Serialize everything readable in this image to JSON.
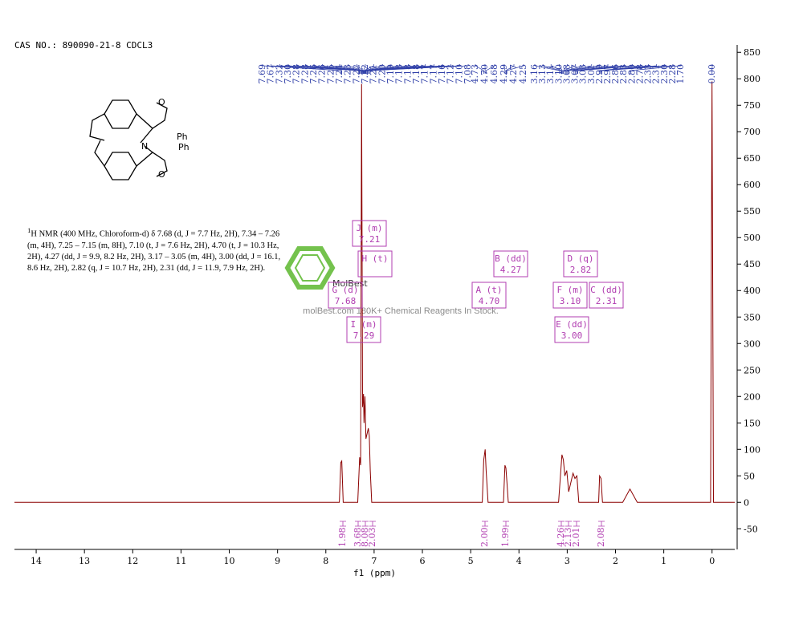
{
  "header": "CAS NO.: 890090-21-8 CDCL3",
  "nmr_text": {
    "sup": "1",
    "text": "H NMR (400 MHz, Chloroform-d) δ 7.68 (d, J = 7.7 Hz, 2H), 7.34 – 7.26 (m, 4H), 7.25 – 7.15 (m, 8H), 7.10 (t, J = 7.6 Hz, 2H), 4.70 (t, J = 10.3 Hz, 2H), 4.27 (dd, J = 9.9, 8.2 Hz, 2H), 3.17 – 3.05 (m, 4H), 3.00 (dd, J = 16.1, 8.6 Hz, 2H), 2.82 (q, J = 10.7 Hz, 2H), 2.31 (dd, J = 11.9, 7.9 Hz, 2H)."
  },
  "structure": {
    "labels": [
      "O",
      "N",
      "O",
      "Ph",
      "Ph"
    ]
  },
  "watermark": {
    "brand": "MolBest",
    "tagline": "molBest.com 180K+ Chemical Reagents In Stock."
  },
  "peak_labels": [
    "7.69",
    "7.67",
    "7.32",
    "7.30",
    "7.28",
    "7.28",
    "7.26",
    "7.26",
    "7.25",
    "7.24",
    "7.23",
    "7.22",
    "7.22",
    "7.21",
    "7.20",
    "7.19",
    "7.18",
    "7.18",
    "7.18",
    "7.17",
    "7.17",
    "7.16",
    "7.12",
    "7.10",
    "7.08",
    "4.73",
    "4.70",
    "4.68",
    "4.29",
    "4.27",
    "4.25",
    "3.16",
    "3.13",
    "3.11",
    "3.10",
    "3.08",
    "3.07",
    "3.03",
    "3.01",
    "2.99",
    "2.97",
    "2.86",
    "2.83",
    "2.80",
    "2.78",
    "2.33",
    "2.31",
    "2.30",
    "2.28",
    "1.70",
    "0.00"
  ],
  "multiplets": [
    {
      "label": "J (m)",
      "shift": "7.21"
    },
    {
      "label": "H (t)"
    },
    {
      "label": "G (d)",
      "shift": "7.68"
    },
    {
      "label": "I (m)",
      "shift": "7.29"
    },
    {
      "label": "B (dd)",
      "shift": "4.27"
    },
    {
      "label": "A (t)",
      "shift": "4.70"
    },
    {
      "label": "D (q)",
      "shift": "2.82"
    },
    {
      "label": "F (m)",
      "shift": "3.10"
    },
    {
      "label": "C (dd)",
      "shift": "2.31"
    },
    {
      "label": "E (dd)",
      "shift": "3.00"
    }
  ],
  "integrals": [
    "1.98",
    "3.68",
    "8.08",
    "2.03",
    "2.00",
    "1.99",
    "4.26",
    "2.13",
    "2.01",
    "2.08"
  ],
  "chart_data": {
    "type": "line",
    "x_label": "f1 (ppm)",
    "xlim": [
      14.45,
      -0.47
    ],
    "ylim": [
      -89,
      864
    ],
    "xticks": [
      14,
      13,
      12,
      11,
      10,
      9,
      8,
      7,
      6,
      5,
      4,
      3,
      2,
      1,
      0
    ],
    "yticks": [
      -50,
      0,
      50,
      100,
      150,
      200,
      250,
      300,
      350,
      400,
      450,
      500,
      550,
      600,
      650,
      700,
      750,
      800,
      850
    ],
    "series": [
      {
        "color": "#8b0000",
        "x": [
          14.45,
          7.72,
          7.69,
          7.67,
          7.64,
          7.34,
          7.3,
          7.28,
          7.26,
          7.24,
          7.22,
          7.21,
          7.19,
          7.17,
          7.12,
          7.1,
          7.08,
          7.05,
          4.76,
          4.73,
          4.7,
          4.68,
          4.64,
          4.32,
          4.29,
          4.27,
          4.25,
          4.22,
          3.18,
          3.11,
          3.08,
          3.05,
          3.01,
          2.97,
          2.88,
          2.84,
          2.8,
          2.76,
          2.35,
          2.33,
          2.3,
          2.27,
          1.85,
          1.7,
          1.55,
          0.03,
          0.0,
          -0.03,
          -0.47
        ],
        "values": [
          0,
          0,
          75,
          78,
          0,
          0,
          85,
          70,
          790,
          180,
          205,
          150,
          200,
          120,
          140,
          125,
          60,
          0,
          0,
          80,
          100,
          60,
          0,
          0,
          70,
          65,
          40,
          0,
          0,
          90,
          80,
          50,
          60,
          20,
          55,
          45,
          50,
          0,
          0,
          50,
          45,
          0,
          0,
          25,
          0,
          0,
          795,
          0,
          0
        ]
      }
    ]
  }
}
